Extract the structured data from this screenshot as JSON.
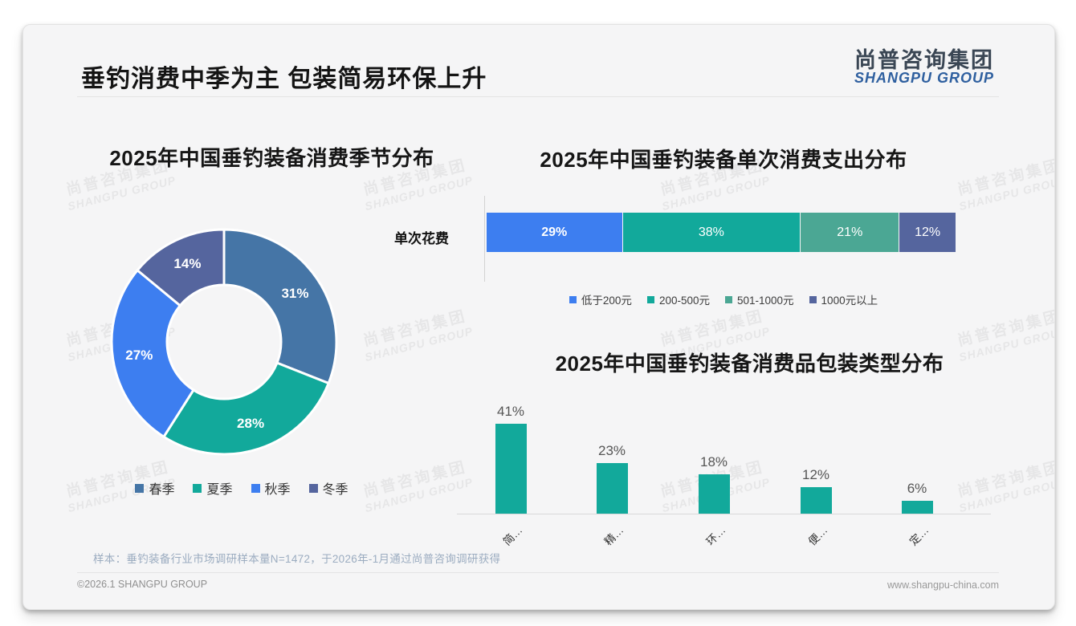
{
  "page": {
    "title": "垂钓消费中季为主 包装简易环保上升",
    "logo": {
      "cn": "尚普咨询集团",
      "en": "SHANGPU GROUP"
    },
    "watermark": {
      "line1": "尚普咨询集团",
      "line2": "SHANGPU GROUP"
    },
    "footnote": "样本：垂钓装备行业市场调研样本量N=1472，于2026年-1月通过尚普咨询调研获得",
    "footer": {
      "left": "©2026.1 SHANGPU GROUP",
      "right": "www.shangpu-china.com"
    }
  },
  "colors": {
    "steel_blue": "#4575a6",
    "teal": "#12a99b",
    "bright_blue": "#3d7ef0",
    "slate_blue": "#55659e",
    "sea_green": "#4ba794",
    "logo_blue": "#2e5f9f",
    "card_bg": "#f5f5f6"
  },
  "chart_data": [
    {
      "type": "pie",
      "subtype": "donut",
      "title": "2025年中国垂钓装备消费季节分布",
      "categories": [
        "春季",
        "夏季",
        "秋季",
        "冬季"
      ],
      "values": [
        31,
        28,
        27,
        14
      ],
      "unit": "%",
      "colors": [
        "#4575a6",
        "#12a99b",
        "#3d7ef0",
        "#55659e"
      ],
      "start_angle": "top",
      "direction": "clockwise",
      "legend_position": "bottom",
      "labels_shown": [
        "31%",
        "28%",
        "27%",
        "14%"
      ]
    },
    {
      "type": "bar",
      "subtype": "stacked-horizontal",
      "title": "2025年中国垂钓装备单次消费支出分布",
      "category": "单次花费",
      "series": [
        {
          "name": "低于200元",
          "value": 29,
          "color": "#3d7ef0"
        },
        {
          "name": "200-500元",
          "value": 38,
          "color": "#12a99b"
        },
        {
          "name": "501-1000元",
          "value": 21,
          "color": "#4ba794"
        },
        {
          "name": "1000元以上",
          "value": 12,
          "color": "#55659e"
        }
      ],
      "unit": "%",
      "legend_position": "bottom",
      "xlim": [
        0,
        100
      ]
    },
    {
      "type": "bar",
      "subtype": "vertical",
      "title": "2025年中国垂钓装备消费品包装类型分布",
      "categories": [
        "简…",
        "精…",
        "环…",
        "便…",
        "定…"
      ],
      "values": [
        41,
        23,
        18,
        12,
        6
      ],
      "unit": "%",
      "color": "#12a99b",
      "ylim": [
        0,
        45
      ],
      "grid": false,
      "value_labels": "above"
    }
  ]
}
